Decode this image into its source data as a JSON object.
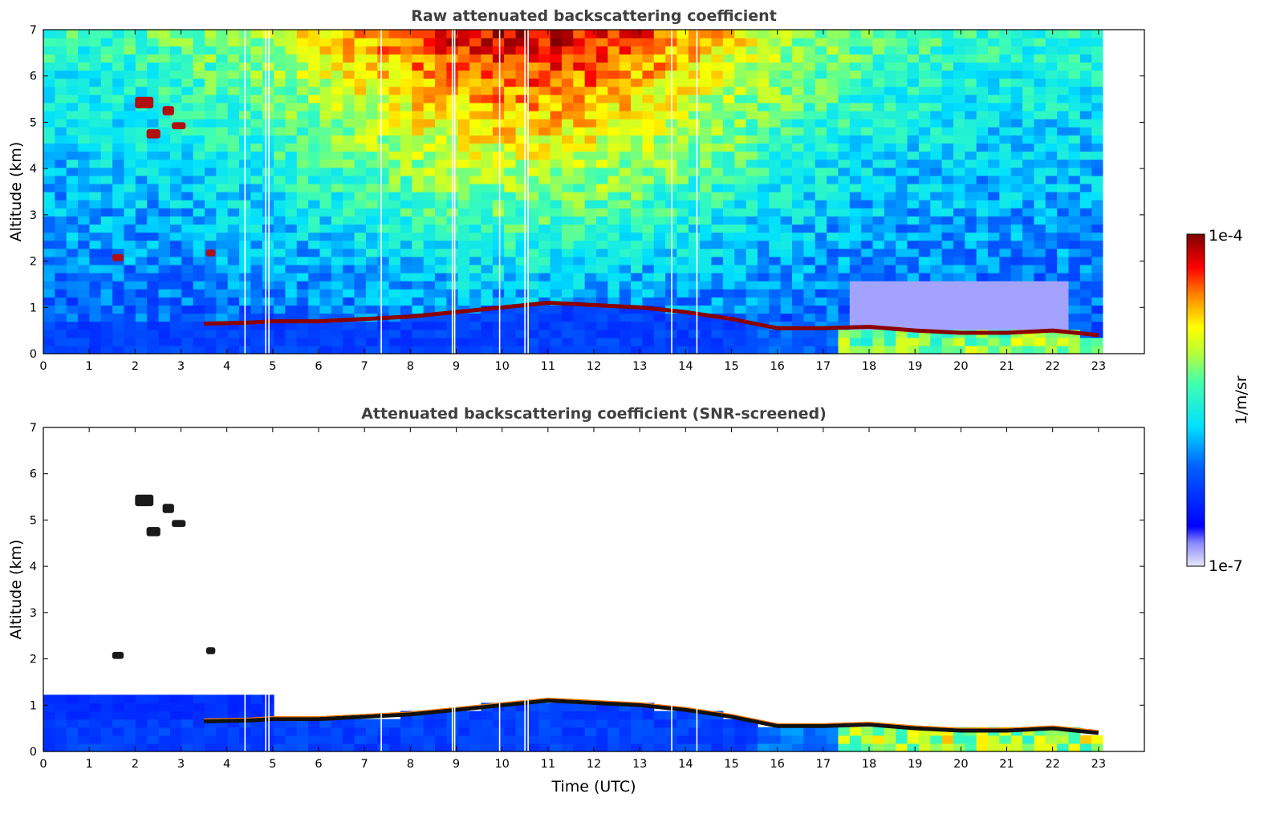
{
  "chart_data": [
    {
      "type": "heatmap",
      "title": "Raw attenuated backscattering coefficient",
      "xlabel": "",
      "ylabel": "Altitude (km)",
      "xlim": [
        0,
        24
      ],
      "ylim": [
        0,
        7
      ],
      "xticks": [
        "0",
        "1",
        "2",
        "3",
        "4",
        "5",
        "6",
        "7",
        "8",
        "9",
        "10",
        "11",
        "12",
        "13",
        "14",
        "15",
        "16",
        "17",
        "18",
        "19",
        "20",
        "21",
        "22",
        "23"
      ],
      "yticks": [
        "0",
        "1",
        "2",
        "3",
        "4",
        "5",
        "6",
        "7"
      ],
      "data_end_time": 23.1,
      "dropout_times": [
        4.4,
        4.85,
        4.92,
        7.37,
        8.92,
        8.97,
        9.95,
        10.5,
        10.57,
        13.7,
        14.25
      ],
      "boundary_layer_top_km": [
        [
          3.5,
          0.65
        ],
        [
          4.5,
          0.67
        ],
        [
          5,
          0.7
        ],
        [
          6,
          0.7
        ],
        [
          7,
          0.75
        ],
        [
          8,
          0.8
        ],
        [
          9,
          0.9
        ],
        [
          10,
          1.0
        ],
        [
          11,
          1.1
        ],
        [
          12,
          1.05
        ],
        [
          13,
          1.0
        ],
        [
          14,
          0.9
        ],
        [
          15,
          0.75
        ],
        [
          16,
          0.55
        ],
        [
          17,
          0.55
        ],
        [
          18,
          0.58
        ],
        [
          19,
          0.5
        ],
        [
          20,
          0.45
        ],
        [
          21,
          0.45
        ],
        [
          22,
          0.5
        ],
        [
          23,
          0.4
        ]
      ],
      "cloud_features": [
        {
          "t": [
            2.0,
            2.4
          ],
          "alt_km": [
            5.3,
            5.55
          ]
        },
        {
          "t": [
            2.6,
            2.85
          ],
          "alt_km": [
            5.15,
            5.35
          ]
        },
        {
          "t": [
            2.25,
            2.55
          ],
          "alt_km": [
            4.65,
            4.85
          ]
        },
        {
          "t": [
            2.8,
            3.1
          ],
          "alt_km": [
            4.85,
            5.0
          ]
        },
        {
          "t": [
            1.5,
            1.75
          ],
          "alt_km": [
            2.0,
            2.15
          ]
        },
        {
          "t": [
            3.55,
            3.75
          ],
          "alt_km": [
            2.1,
            2.25
          ]
        }
      ]
    },
    {
      "type": "heatmap",
      "title": "Attenuated backscattering coefficient (SNR-screened)",
      "xlabel": "Time (UTC)",
      "ylabel": "Altitude (km)",
      "xlim": [
        0,
        24
      ],
      "ylim": [
        0,
        7
      ],
      "xticks": [
        "0",
        "1",
        "2",
        "3",
        "4",
        "5",
        "6",
        "7",
        "8",
        "9",
        "10",
        "11",
        "12",
        "13",
        "14",
        "15",
        "16",
        "17",
        "18",
        "19",
        "20",
        "21",
        "22",
        "23"
      ],
      "yticks": [
        "0",
        "1",
        "2",
        "3",
        "4",
        "5",
        "6",
        "7"
      ],
      "data_end_time": 23.1
    }
  ],
  "colorbar": {
    "label": "1/m/sr",
    "max_label": "1e-4",
    "min_label": "1e-7",
    "scale": "log",
    "colormap": "jet",
    "colors": [
      "#e8e8f8",
      "#0000ff",
      "#00ffff",
      "#ffff00",
      "#ff0000",
      "#800000"
    ]
  }
}
